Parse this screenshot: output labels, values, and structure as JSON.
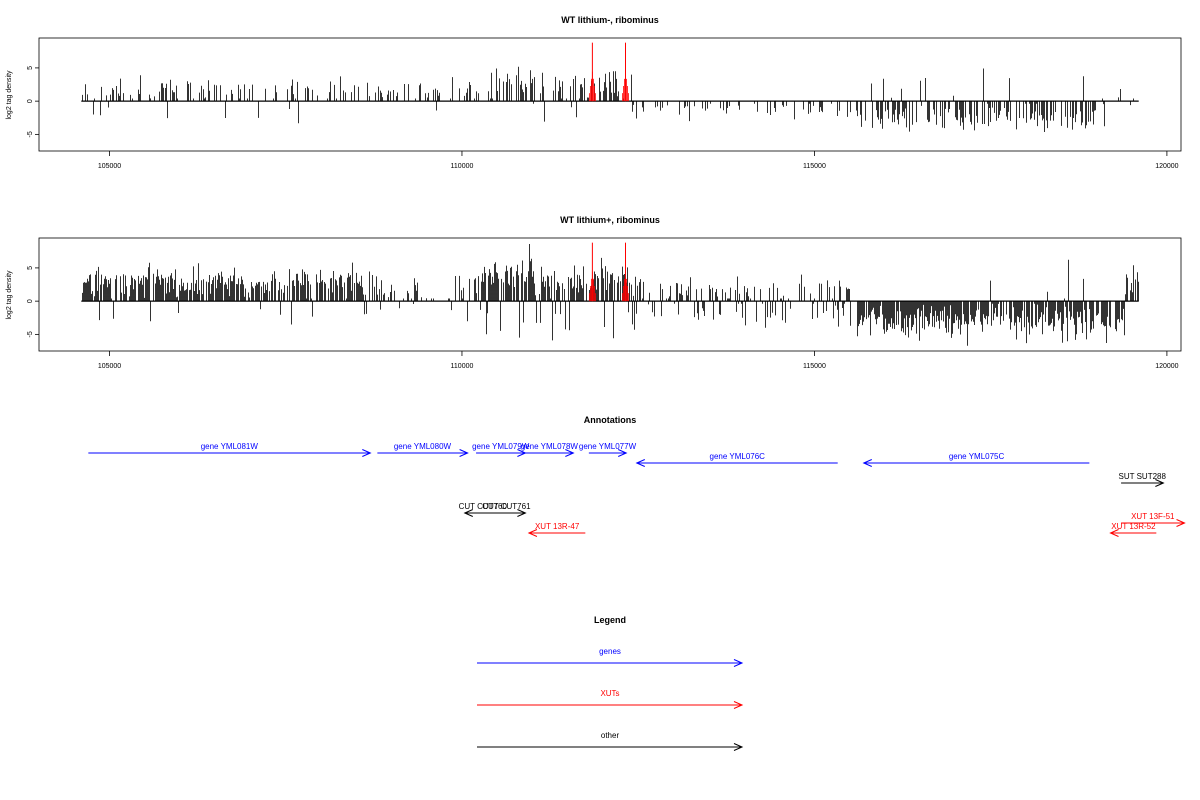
{
  "chart_data": [
    {
      "type": "bar",
      "title": "WT lithium-, ribominus",
      "xlabel": "",
      "ylabel": "log2 tag density",
      "xlim": [
        104000,
        120200
      ],
      "ylim": [
        -7.5,
        9.5
      ],
      "xticks": [
        105000,
        110000,
        115000,
        120000
      ],
      "yticks": [
        -5,
        0,
        5
      ],
      "track_start": 104600,
      "track_end": 119600,
      "grid": false,
      "segments": [
        {
          "from": 104600,
          "to": 110300,
          "mean": 1.9,
          "sd": 1.0,
          "max": 4.6,
          "neg_rate": 0.05,
          "density": 0.35
        },
        {
          "from": 110300,
          "to": 111000,
          "mean": 3.0,
          "sd": 1.2,
          "max": 5.6,
          "neg_rate": 0.05,
          "density": 0.55
        },
        {
          "from": 111000,
          "to": 112400,
          "mean": 2.2,
          "sd": 1.2,
          "max": 4.5,
          "neg_rate": 0.08,
          "density": 0.45
        },
        {
          "from": 112400,
          "to": 115600,
          "mean": -1.4,
          "sd": 0.8,
          "max": 3.0,
          "neg_rate": 0.95,
          "density": 0.18
        },
        {
          "from": 115600,
          "to": 119200,
          "mean": -2.6,
          "sd": 1.2,
          "max": 6.3,
          "neg_rate": 0.95,
          "density": 0.55
        },
        {
          "from": 119200,
          "to": 119600,
          "mean": 1.2,
          "sd": 0.8,
          "max": 3.0,
          "neg_rate": 0.2,
          "density": 0.15
        }
      ],
      "highlights": [
        {
          "x": 111850,
          "y": 8.8,
          "color": "#ff0000"
        },
        {
          "x": 112320,
          "y": 8.8,
          "color": "#ff0000"
        }
      ],
      "seed": 11
    },
    {
      "type": "bar",
      "title": "WT lithium+, ribominus",
      "xlabel": "",
      "ylabel": "log2 tag density",
      "xlim": [
        104000,
        120200
      ],
      "ylim": [
        -7.5,
        9.5
      ],
      "xticks": [
        105000,
        110000,
        115000,
        120000
      ],
      "yticks": [
        -5,
        0,
        5
      ],
      "track_start": 104600,
      "track_end": 119600,
      "grid": false,
      "segments": [
        {
          "from": 104600,
          "to": 108600,
          "mean": 2.8,
          "sd": 1.2,
          "max": 5.8,
          "neg_rate": 0.03,
          "density": 0.75
        },
        {
          "from": 108600,
          "to": 110200,
          "mean": 1.8,
          "sd": 1.2,
          "max": 4.5,
          "neg_rate": 0.15,
          "density": 0.45
        },
        {
          "from": 110200,
          "to": 111000,
          "mean": 3.8,
          "sd": 1.5,
          "max": 8.6,
          "neg_rate": 0.08,
          "density": 0.8
        },
        {
          "from": 111000,
          "to": 112500,
          "mean": 3.2,
          "sd": 1.5,
          "max": 6.5,
          "neg_rate": 0.1,
          "density": 0.75
        },
        {
          "from": 112500,
          "to": 115600,
          "mean": 1.6,
          "sd": 1.2,
          "max": 4.0,
          "neg_rate": 0.45,
          "density": 0.55
        },
        {
          "from": 115600,
          "to": 119400,
          "mean": -3.0,
          "sd": 1.3,
          "max": 7.0,
          "neg_rate": 0.97,
          "density": 0.85
        },
        {
          "from": 119400,
          "to": 119600,
          "mean": 3.2,
          "sd": 1.2,
          "max": 5.5,
          "neg_rate": 0.1,
          "density": 0.6
        }
      ],
      "highlights": [
        {
          "x": 111850,
          "y": 8.8,
          "color": "#ff0000"
        },
        {
          "x": 112320,
          "y": 8.8,
          "color": "#ff0000"
        }
      ],
      "seed": 23
    }
  ],
  "annotations": {
    "title": "Annotations",
    "xlim": [
      104000,
      120200
    ],
    "features": [
      {
        "label": "gene YML081W",
        "start": 104700,
        "end": 108700,
        "strand": "+",
        "row": 0,
        "color": "#0000ff"
      },
      {
        "label": "gene YML080W",
        "start": 108800,
        "end": 110080,
        "strand": "+",
        "row": 0,
        "color": "#0000ff"
      },
      {
        "label": "gene YML079W",
        "start": 110200,
        "end": 110900,
        "strand": "+",
        "row": 0,
        "color": "#0000ff"
      },
      {
        "label": "gene YML078W",
        "start": 110900,
        "end": 111580,
        "strand": "+",
        "row": 0,
        "color": "#0000ff"
      },
      {
        "label": "gene YML077W",
        "start": 111800,
        "end": 112330,
        "strand": "+",
        "row": 0,
        "color": "#0000ff"
      },
      {
        "label": "gene YML076C",
        "start": 112480,
        "end": 115330,
        "strand": "-",
        "row": 1,
        "color": "#0000ff"
      },
      {
        "label": "gene YML075C",
        "start": 115700,
        "end": 118900,
        "strand": "-",
        "row": 1,
        "color": "#0000ff"
      },
      {
        "label": "SUT SUT288",
        "start": 119350,
        "end": 119950,
        "strand": "+",
        "row": 3,
        "color": "#000000"
      },
      {
        "label": "CUT CUT760",
        "start": 110040,
        "end": 110550,
        "strand": "-",
        "row": 6,
        "color": "#000000"
      },
      {
        "label": "CUT CUT761",
        "start": 110360,
        "end": 110900,
        "strand": "+",
        "row": 6,
        "color": "#000000"
      },
      {
        "label": "XUT 13R-47",
        "start": 110950,
        "end": 111750,
        "strand": "-",
        "row": 8,
        "color": "#ff0000"
      },
      {
        "label": "XUT 13F-51",
        "start": 119350,
        "end": 120250,
        "strand": "+",
        "row": 7,
        "color": "#ff0000"
      },
      {
        "label": "XUT 13R-52",
        "start": 119200,
        "end": 119850,
        "strand": "-",
        "row": 8,
        "color": "#ff0000"
      }
    ]
  },
  "legend": {
    "title": "Legend",
    "items": [
      {
        "label": "genes",
        "color": "#0000ff"
      },
      {
        "label": "XUTs",
        "color": "#ff0000"
      },
      {
        "label": "other",
        "color": "#000000"
      }
    ]
  }
}
